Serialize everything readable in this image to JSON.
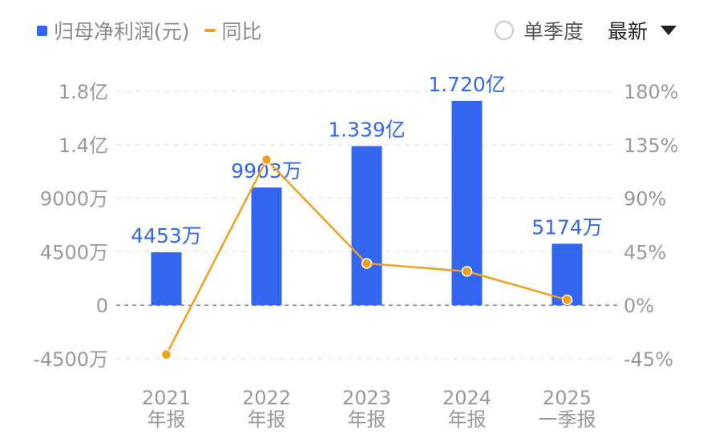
{
  "legend": {
    "bar_label": "归母净利润(元)",
    "line_label": "同比"
  },
  "controls": {
    "quarter_label": "单季度",
    "select_value": "最新"
  },
  "colors": {
    "bar": "#3366ee",
    "line": "#f0a020",
    "axis_text": "#999999",
    "label_text": "#3366ee"
  },
  "chart_data": {
    "type": "bar",
    "categories": [
      "2021\n年报",
      "2022\n年报",
      "2023\n年报",
      "2024\n年报",
      "2025\n一季报"
    ],
    "series": [
      {
        "name": "归母净利润(元)",
        "type": "bar",
        "axis": "left",
        "values": [
          44530000,
          99030000,
          133900000,
          172000000,
          51740000
        ],
        "labels": [
          "4453万",
          "9903万",
          "1.339亿",
          "1.720亿",
          "5174万"
        ]
      },
      {
        "name": "同比",
        "type": "line",
        "axis": "right",
        "values": [
          -41.5,
          122.4,
          35.2,
          28.5,
          4.5
        ]
      }
    ],
    "y_left": {
      "ticks": [
        -45000000,
        0,
        45000000,
        90000000,
        135000000,
        180000000
      ],
      "tick_labels": [
        "-4500万",
        "0",
        "4500万",
        "9000万",
        "1.4亿",
        "1.8亿"
      ],
      "ylim": [
        -45000000,
        180000000
      ]
    },
    "y_right": {
      "ticks": [
        -45,
        0,
        45,
        90,
        135,
        180
      ],
      "tick_labels": [
        "-45%",
        "0%",
        "45%",
        "90%",
        "135%",
        "180%"
      ],
      "ylim": [
        -45,
        180
      ]
    },
    "grid": true
  }
}
